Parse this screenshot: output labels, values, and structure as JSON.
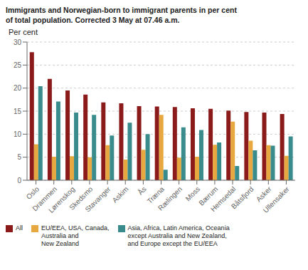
{
  "chart_data": {
    "type": "bar",
    "title": "Immigrants and Norwegian-born to immigrant parents in per cent\nof total population. Corrected 3 May at 07.46 a.m.",
    "ylabel": "Per cent",
    "categories": [
      "Oslo",
      "Drammen",
      "Lørenskog",
      "Skedsmo",
      "Stavanger",
      "Askim",
      "Ås",
      "Træna",
      "Rælingen",
      "Moss",
      "Bærum",
      "Hemsedal",
      "Båtsfjord",
      "Asker",
      "Ullensaker"
    ],
    "series": [
      {
        "name": "All",
        "color": "#8B1A1A",
        "values": [
          27.8,
          22.0,
          19.5,
          18.6,
          16.9,
          16.7,
          16.1,
          16.0,
          15.9,
          15.6,
          15.5,
          15.1,
          14.8,
          14.7,
          14.4
        ]
      },
      {
        "name": "EU/EEA, USA, Canada,\nAustralia and\nNew Zealand",
        "color": "#E8A840",
        "values": [
          7.8,
          5.1,
          5.2,
          5.0,
          7.6,
          4.5,
          6.6,
          14.2,
          4.9,
          5.1,
          7.7,
          12.7,
          8.6,
          7.6,
          5.3
        ]
      },
      {
        "name": "Asia, Africa, Latin America, Oceania\nexcept Australia and New Zealand,\nand Europe except the EU/EEA",
        "color": "#3A8B8B",
        "values": [
          20.4,
          17.1,
          14.7,
          14.2,
          9.7,
          12.5,
          10.0,
          2.3,
          11.5,
          10.9,
          8.2,
          3.1,
          6.5,
          7.5,
          9.5
        ]
      }
    ],
    "ylim": [
      0,
      30
    ],
    "yticks": [
      0,
      5,
      10,
      15,
      20,
      25,
      30
    ],
    "grid": true,
    "legend": "lower left"
  }
}
